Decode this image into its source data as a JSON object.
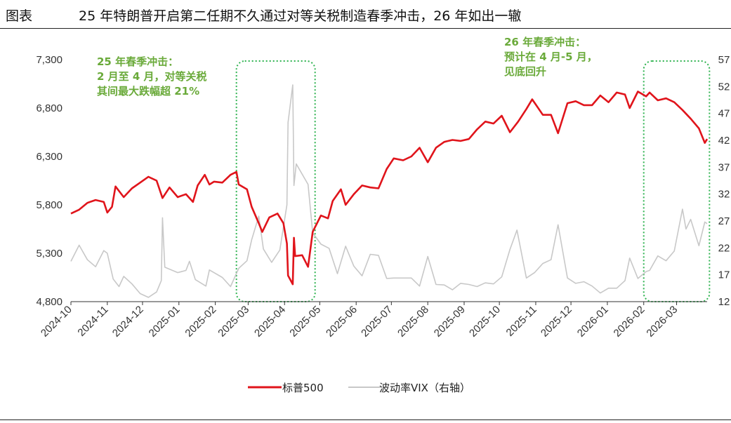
{
  "header": {
    "label": "图表",
    "title": "25 年特朗普开启第二任期不久通过对等关税制造春季冲击，26 年如出一辙"
  },
  "chart_data": {
    "type": "line",
    "title": "25 年特朗普开启第二任期不久通过对等关税制造春季冲击，26 年如出一辙",
    "x_ticks": [
      "2024-10",
      "2024-11",
      "2024-12",
      "2025-01",
      "2025-02",
      "2025-03",
      "2025-04",
      "2025-05",
      "2025-06",
      "2025-07",
      "2025-08",
      "2025-09",
      "2025-10",
      "2025-11",
      "2025-12",
      "2026-01",
      "2026-02",
      "2026-03"
    ],
    "x_range": [
      "2024-10-01",
      "2026-03-27"
    ],
    "y_left": {
      "ylim": [
        4800,
        7300
      ],
      "ticks": [
        "4,800",
        "5,300",
        "5,800",
        "6,300",
        "6,800",
        "7,300"
      ]
    },
    "y_right": {
      "ylim": [
        12,
        57
      ],
      "ticks": [
        "12",
        "17",
        "22",
        "27",
        "32",
        "37",
        "42",
        "47",
        "52",
        "57"
      ]
    },
    "grid": false,
    "legend_position": "bottom",
    "series": [
      {
        "name": "标普500",
        "axis": "left",
        "color": "#e0141b",
        "points": [
          [
            "2024-10-01",
            5710
          ],
          [
            "2024-10-08",
            5750
          ],
          [
            "2024-10-15",
            5820
          ],
          [
            "2024-10-22",
            5850
          ],
          [
            "2024-10-29",
            5830
          ],
          [
            "2024-11-01",
            5720
          ],
          [
            "2024-11-05",
            5780
          ],
          [
            "2024-11-08",
            5990
          ],
          [
            "2024-11-15",
            5880
          ],
          [
            "2024-11-22",
            5970
          ],
          [
            "2024-11-29",
            6030
          ],
          [
            "2024-12-06",
            6090
          ],
          [
            "2024-12-13",
            6050
          ],
          [
            "2024-12-18",
            5870
          ],
          [
            "2024-12-24",
            5980
          ],
          [
            "2024-12-31",
            5880
          ],
          [
            "2025-01-07",
            5910
          ],
          [
            "2025-01-13",
            5830
          ],
          [
            "2025-01-17",
            6000
          ],
          [
            "2025-01-23",
            6110
          ],
          [
            "2025-01-27",
            6010
          ],
          [
            "2025-01-31",
            6040
          ],
          [
            "2025-02-07",
            6030
          ],
          [
            "2025-02-14",
            6110
          ],
          [
            "2025-02-19",
            6140
          ],
          [
            "2025-02-21",
            6010
          ],
          [
            "2025-02-28",
            5960
          ],
          [
            "2025-03-04",
            5780
          ],
          [
            "2025-03-10",
            5610
          ],
          [
            "2025-03-13",
            5520
          ],
          [
            "2025-03-19",
            5670
          ],
          [
            "2025-03-26",
            5710
          ],
          [
            "2025-03-31",
            5610
          ],
          [
            "2025-04-03",
            5400
          ],
          [
            "2025-04-04",
            5070
          ],
          [
            "2025-04-08",
            4980
          ],
          [
            "2025-04-09",
            5460
          ],
          [
            "2025-04-10",
            5270
          ],
          [
            "2025-04-16",
            5280
          ],
          [
            "2025-04-21",
            5160
          ],
          [
            "2025-04-25",
            5520
          ],
          [
            "2025-05-02",
            5690
          ],
          [
            "2025-05-08",
            5660
          ],
          [
            "2025-05-12",
            5840
          ],
          [
            "2025-05-19",
            5960
          ],
          [
            "2025-05-23",
            5800
          ],
          [
            "2025-05-30",
            5910
          ],
          [
            "2025-06-06",
            6000
          ],
          [
            "2025-06-13",
            5980
          ],
          [
            "2025-06-20",
            5970
          ],
          [
            "2025-06-27",
            6170
          ],
          [
            "2025-07-03",
            6280
          ],
          [
            "2025-07-11",
            6260
          ],
          [
            "2025-07-18",
            6300
          ],
          [
            "2025-07-25",
            6390
          ],
          [
            "2025-08-01",
            6240
          ],
          [
            "2025-08-08",
            6390
          ],
          [
            "2025-08-15",
            6450
          ],
          [
            "2025-08-22",
            6470
          ],
          [
            "2025-08-29",
            6460
          ],
          [
            "2025-09-05",
            6480
          ],
          [
            "2025-09-12",
            6580
          ],
          [
            "2025-09-19",
            6660
          ],
          [
            "2025-09-26",
            6640
          ],
          [
            "2025-10-03",
            6720
          ],
          [
            "2025-10-10",
            6550
          ],
          [
            "2025-10-17",
            6660
          ],
          [
            "2025-10-24",
            6790
          ],
          [
            "2025-10-29",
            6890
          ],
          [
            "2025-11-07",
            6730
          ],
          [
            "2025-11-14",
            6730
          ],
          [
            "2025-11-20",
            6540
          ],
          [
            "2025-11-28",
            6850
          ],
          [
            "2025-12-05",
            6870
          ],
          [
            "2025-12-12",
            6830
          ],
          [
            "2025-12-19",
            6830
          ],
          [
            "2025-12-26",
            6930
          ],
          [
            "2026-01-02",
            6860
          ],
          [
            "2026-01-09",
            6960
          ],
          [
            "2026-01-16",
            6940
          ],
          [
            "2026-01-20",
            6800
          ],
          [
            "2026-01-27",
            6970
          ],
          [
            "2026-02-03",
            6920
          ],
          [
            "2026-02-06",
            6960
          ],
          [
            "2026-02-13",
            6880
          ],
          [
            "2026-02-20",
            6900
          ],
          [
            "2026-02-27",
            6860
          ],
          [
            "2026-03-06",
            6780
          ],
          [
            "2026-03-13",
            6690
          ],
          [
            "2026-03-20",
            6590
          ],
          [
            "2026-03-25",
            6440
          ],
          [
            "2026-03-27",
            6480
          ]
        ]
      },
      {
        "name": "波动率VIX（右轴）",
        "axis": "right",
        "color": "#c8c8c8",
        "points": [
          [
            "2024-10-01",
            19.5
          ],
          [
            "2024-10-08",
            22.5
          ],
          [
            "2024-10-15",
            19.8
          ],
          [
            "2024-10-22",
            18.5
          ],
          [
            "2024-10-29",
            21.5
          ],
          [
            "2024-11-01",
            21.0
          ],
          [
            "2024-11-06",
            16.2
          ],
          [
            "2024-11-11",
            14.8
          ],
          [
            "2024-11-15",
            16.7
          ],
          [
            "2024-11-22",
            15.3
          ],
          [
            "2024-11-29",
            13.5
          ],
          [
            "2024-12-06",
            12.8
          ],
          [
            "2024-12-13",
            13.8
          ],
          [
            "2024-12-17",
            15.9
          ],
          [
            "2024-12-18",
            27.6
          ],
          [
            "2024-12-20",
            18.4
          ],
          [
            "2024-12-31",
            17.4
          ],
          [
            "2025-01-07",
            17.8
          ],
          [
            "2025-01-10",
            19.5
          ],
          [
            "2025-01-15",
            16.1
          ],
          [
            "2025-01-24",
            14.9
          ],
          [
            "2025-01-27",
            17.9
          ],
          [
            "2025-02-07",
            16.5
          ],
          [
            "2025-02-14",
            14.8
          ],
          [
            "2025-02-21",
            18.2
          ],
          [
            "2025-02-28",
            19.6
          ],
          [
            "2025-03-04",
            23.5
          ],
          [
            "2025-03-10",
            27.9
          ],
          [
            "2025-03-14",
            21.8
          ],
          [
            "2025-03-21",
            19.3
          ],
          [
            "2025-03-28",
            21.6
          ],
          [
            "2025-04-03",
            30.0
          ],
          [
            "2025-04-04",
            45.3
          ],
          [
            "2025-04-08",
            52.3
          ],
          [
            "2025-04-09",
            33.6
          ],
          [
            "2025-04-11",
            37.6
          ],
          [
            "2025-04-21",
            33.8
          ],
          [
            "2025-04-25",
            24.8
          ],
          [
            "2025-05-02",
            22.7
          ],
          [
            "2025-05-09",
            21.9
          ],
          [
            "2025-05-16",
            17.2
          ],
          [
            "2025-05-23",
            22.3
          ],
          [
            "2025-05-30",
            18.6
          ],
          [
            "2025-06-06",
            16.8
          ],
          [
            "2025-06-13",
            20.8
          ],
          [
            "2025-06-20",
            20.6
          ],
          [
            "2025-06-27",
            16.3
          ],
          [
            "2025-07-03",
            16.4
          ],
          [
            "2025-07-11",
            16.4
          ],
          [
            "2025-07-18",
            16.4
          ],
          [
            "2025-07-25",
            14.9
          ],
          [
            "2025-08-01",
            20.4
          ],
          [
            "2025-08-08",
            15.2
          ],
          [
            "2025-08-15",
            15.1
          ],
          [
            "2025-08-22",
            14.2
          ],
          [
            "2025-08-29",
            15.4
          ],
          [
            "2025-09-05",
            15.2
          ],
          [
            "2025-09-12",
            14.8
          ],
          [
            "2025-09-19",
            15.5
          ],
          [
            "2025-09-26",
            15.3
          ],
          [
            "2025-10-03",
            16.6
          ],
          [
            "2025-10-10",
            21.7
          ],
          [
            "2025-10-16",
            25.3
          ],
          [
            "2025-10-24",
            16.4
          ],
          [
            "2025-10-31",
            17.4
          ],
          [
            "2025-11-07",
            19.1
          ],
          [
            "2025-11-14",
            19.8
          ],
          [
            "2025-11-20",
            26.3
          ],
          [
            "2025-11-28",
            16.4
          ],
          [
            "2025-12-05",
            15.4
          ],
          [
            "2025-12-12",
            15.7
          ],
          [
            "2025-12-19",
            14.9
          ],
          [
            "2025-12-26",
            13.6
          ],
          [
            "2026-01-02",
            14.5
          ],
          [
            "2026-01-09",
            14.5
          ],
          [
            "2026-01-16",
            15.9
          ],
          [
            "2026-01-20",
            20.1
          ],
          [
            "2026-01-27",
            16.3
          ],
          [
            "2026-02-03",
            17.6
          ],
          [
            "2026-02-06",
            17.8
          ],
          [
            "2026-02-13",
            20.5
          ],
          [
            "2026-02-20",
            19.6
          ],
          [
            "2026-02-27",
            21.4
          ],
          [
            "2026-03-06",
            29.2
          ],
          [
            "2026-03-09",
            25.5
          ],
          [
            "2026-03-13",
            27.3
          ],
          [
            "2026-03-20",
            22.4
          ],
          [
            "2026-03-25",
            26.8
          ],
          [
            "2026-03-27",
            26.5
          ]
        ]
      }
    ],
    "annotations": [
      {
        "lines": [
          "25 年春季冲击：",
          "2 月至 4 月，对等关税",
          "其间最大跌幅超 21%"
        ]
      },
      {
        "lines": [
          "26 年春季冲击：",
          "预计在 4 月-5 月，",
          "见底回升"
        ]
      }
    ],
    "highlight_ranges": [
      [
        "2025-02-19",
        "2025-04-27"
      ],
      [
        "2026-02-01",
        "2026-03-29"
      ]
    ]
  }
}
